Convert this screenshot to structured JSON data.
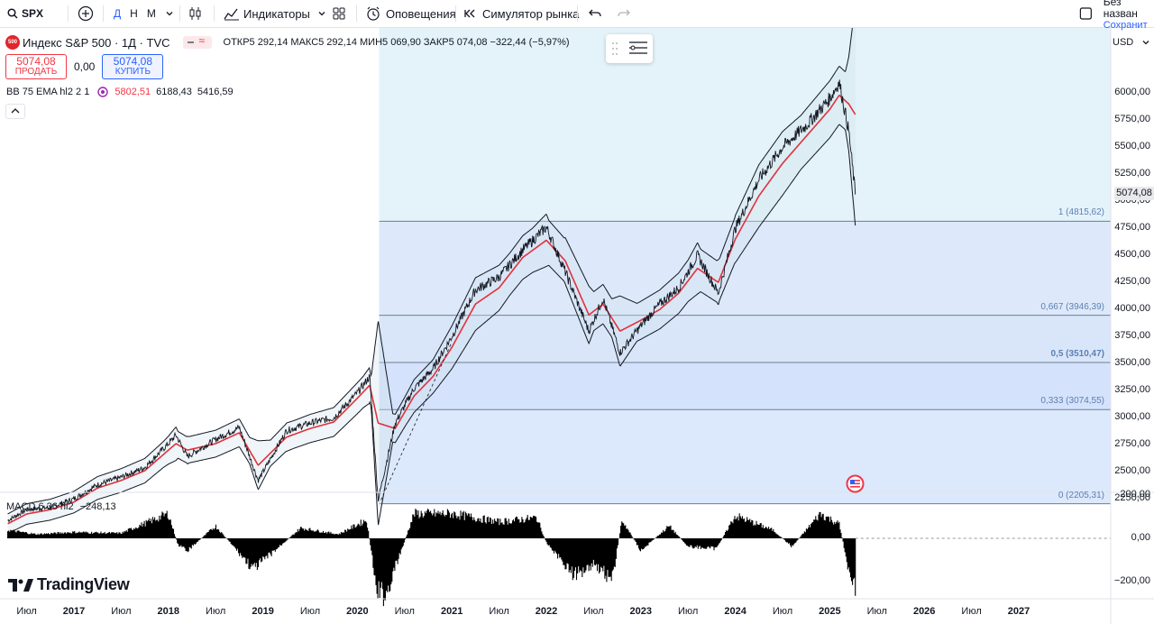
{
  "toolbar": {
    "symbol": "SPX",
    "intervals": [
      "Д",
      "Н",
      "М"
    ],
    "indicators_label": "Индикаторы",
    "alerts_label": "Оповещения",
    "replay_label": "Симулятор рынка",
    "layout_name": "Без назван",
    "save_label": "Сохранит"
  },
  "legend": {
    "title": "Индекс S&P 500 · 1Д · TVC",
    "symbol_badge": "500",
    "ohlc": "ОТКР5 292,14  МАКС5 292,14  МИН5 069,90  ЗАКР5 074,08  −322,44 (−5,97%)",
    "sell_price": "5074,08",
    "sell_label": "ПРОДАТЬ",
    "spread": "0,00",
    "buy_price": "5074,08",
    "buy_label": "КУПИТЬ",
    "bb_label": "BB 75 EMA hl2 2 1",
    "bb_v1": "5802,51",
    "bb_v2": "6188,43",
    "bb_v3": "5416,59",
    "macd_label": "MACD 6 36 hl2",
    "macd_value": "−248,13"
  },
  "price_axis": {
    "currency": "USD",
    "labels": [
      "6000,00",
      "5750,00",
      "5500,00",
      "5250,00",
      "5000,00",
      "4750,00",
      "4500,00",
      "4250,00",
      "4000,00",
      "3750,00",
      "3500,00",
      "3250,00",
      "3000,00",
      "2750,00",
      "2500,00",
      "2250,00"
    ],
    "current_price": "5074,08",
    "macd_labels": [
      "200,00",
      "0,00",
      "−200,00"
    ]
  },
  "time_axis": {
    "labels": [
      {
        "text": "Июл",
        "year": false
      },
      {
        "text": "2017",
        "year": true
      },
      {
        "text": "Июл",
        "year": false
      },
      {
        "text": "2018",
        "year": true
      },
      {
        "text": "Июл",
        "year": false
      },
      {
        "text": "2019",
        "year": true
      },
      {
        "text": "Июл",
        "year": false
      },
      {
        "text": "2020",
        "year": true
      },
      {
        "text": "Июл",
        "year": false
      },
      {
        "text": "2021",
        "year": true
      },
      {
        "text": "Июл",
        "year": false
      },
      {
        "text": "2022",
        "year": true
      },
      {
        "text": "Июл",
        "year": false
      },
      {
        "text": "2023",
        "year": true
      },
      {
        "text": "Июл",
        "year": false
      },
      {
        "text": "2024",
        "year": true
      },
      {
        "text": "Июл",
        "year": false
      },
      {
        "text": "2025",
        "year": true
      },
      {
        "text": "Июл",
        "year": false
      },
      {
        "text": "2026",
        "year": true
      },
      {
        "text": "Июл",
        "year": false
      },
      {
        "text": "2027",
        "year": true
      }
    ]
  },
  "fib": {
    "levels": [
      {
        "label": "1 (4815,62)",
        "price": 4815.62,
        "bold": false
      },
      {
        "label": "0,667 (3946,39)",
        "price": 3946.39,
        "bold": false
      },
      {
        "label": "0,5 (3510,47)",
        "price": 3510.47,
        "bold": true
      },
      {
        "label": "0,333 (3074,55)",
        "price": 3074.55,
        "bold": false
      },
      {
        "label": "0 (2205,31)",
        "price": 2205.31,
        "bold": false
      }
    ]
  },
  "chart_data": {
    "type": "line",
    "title": "Индекс S&P 500",
    "ylim": [
      2180,
      6150
    ],
    "x": [
      2016.3,
      2016.5,
      2016.75,
      2017.0,
      2017.25,
      2017.5,
      2017.75,
      2018.0,
      2018.08,
      2018.2,
      2018.5,
      2018.75,
      2018.95,
      2019.25,
      2019.5,
      2019.75,
      2020.0,
      2020.13,
      2020.22,
      2020.4,
      2020.6,
      2020.8,
      2021.0,
      2021.25,
      2021.5,
      2021.75,
      2022.0,
      2022.2,
      2022.45,
      2022.6,
      2022.78,
      2023.0,
      2023.2,
      2023.4,
      2023.6,
      2023.82,
      2024.0,
      2024.25,
      2024.5,
      2024.75,
      2025.0,
      2025.1,
      2025.2,
      2025.27
    ],
    "series": [
      {
        "values": [
          2050,
          2150,
          2170,
          2250,
          2380,
          2450,
          2540,
          2760,
          2840,
          2640,
          2800,
          2910,
          2420,
          2880,
          2950,
          3000,
          3230,
          3380,
          2240,
          2950,
          3270,
          3450,
          3750,
          4180,
          4300,
          4550,
          4760,
          4350,
          3800,
          4100,
          3600,
          3850,
          4050,
          4200,
          4500,
          4150,
          4750,
          5200,
          5500,
          5700,
          5950,
          6100,
          5650,
          5074
        ]
      },
      {
        "values": [
          2020,
          2110,
          2150,
          2220,
          2350,
          2420,
          2510,
          2700,
          2760,
          2700,
          2760,
          2860,
          2560,
          2820,
          2900,
          2960,
          3180,
          3300,
          2950,
          2900,
          3200,
          3380,
          3650,
          4050,
          4200,
          4480,
          4640,
          4450,
          3950,
          4050,
          3800,
          3900,
          4000,
          4150,
          4380,
          4250,
          4650,
          5050,
          5350,
          5600,
          5850,
          5980,
          5900,
          5802
        ]
      }
    ]
  },
  "macd_data": {
    "x": [
      2016.3,
      2016.6,
      2017.0,
      2017.5,
      2018.0,
      2018.1,
      2018.2,
      2018.5,
      2018.9,
      2019.0,
      2019.4,
      2019.8,
      2020.1,
      2020.2,
      2020.3,
      2020.6,
      2021.0,
      2021.5,
      2021.9,
      2022.0,
      2022.3,
      2022.5,
      2022.7,
      2022.8,
      2023.0,
      2023.3,
      2023.5,
      2023.8,
      2024.0,
      2024.4,
      2024.6,
      2024.9,
      2025.1,
      2025.2,
      2025.27
    ],
    "values": [
      40,
      20,
      30,
      25,
      120,
      -30,
      -60,
      60,
      -150,
      -110,
      50,
      20,
      90,
      -250,
      -280,
      120,
      120,
      80,
      100,
      -20,
      -180,
      -120,
      -200,
      90,
      -60,
      60,
      -40,
      -50,
      110,
      40,
      -40,
      120,
      70,
      -150,
      -248
    ]
  }
}
